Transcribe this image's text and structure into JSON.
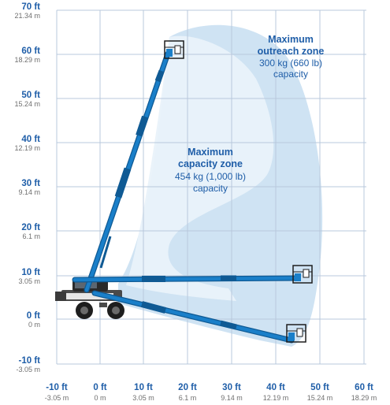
{
  "grid": {
    "y_ticks": [
      {
        "ft": "70 ft",
        "m": "21.34 m"
      },
      {
        "ft": "60 ft",
        "m": "18.29 m"
      },
      {
        "ft": "50 ft",
        "m": "15.24 m"
      },
      {
        "ft": "40 ft",
        "m": "12.19 m"
      },
      {
        "ft": "30 ft",
        "m": "9.14 m"
      },
      {
        "ft": "20 ft",
        "m": "6.1 m"
      },
      {
        "ft": "10 ft",
        "m": "3.05 m"
      },
      {
        "ft": "0 ft",
        "m": "0 m"
      },
      {
        "ft": "-10 ft",
        "m": "-3.05 m"
      }
    ],
    "x_ticks": [
      {
        "ft": "-10 ft",
        "m": "-3.05 m"
      },
      {
        "ft": "0 ft",
        "m": "0 m"
      },
      {
        "ft": "10 ft",
        "m": "3.05 m"
      },
      {
        "ft": "20 ft",
        "m": "6.1 m"
      },
      {
        "ft": "30 ft",
        "m": "9.14 m"
      },
      {
        "ft": "40 ft",
        "m": "12.19 m"
      },
      {
        "ft": "50 ft",
        "m": "15.24 m"
      },
      {
        "ft": "60 ft",
        "m": "18.29 m"
      }
    ]
  },
  "zones": {
    "outreach": {
      "title_1": "Maximum",
      "title_2": "outreach zone",
      "value": "300 kg (660 lb)",
      "label": "capacity"
    },
    "capacity": {
      "title_1": "Maximum",
      "title_2": "capacity zone",
      "value": "454 kg (1,000 lb)",
      "label": "capacity"
    }
  },
  "colors": {
    "boom": "#1a7fc9",
    "boom_dark": "#0f5a94",
    "grid": "#b8c8dc",
    "outreach_zone": "#cfe3f3",
    "capacity_zone": "#e9f2fa",
    "axis_ft": "#1f5ea8",
    "axis_m": "#6f6f6f"
  }
}
